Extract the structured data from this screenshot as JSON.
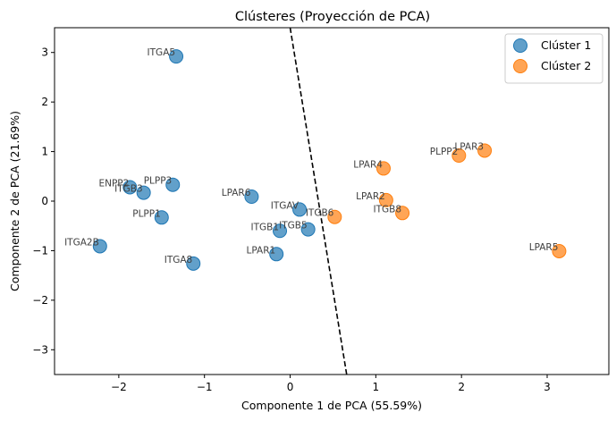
{
  "chart_data": {
    "type": "scatter",
    "title": "Clústeres (Proyección de PCA)",
    "xlabel": "Componente 1 de PCA (55.59%)",
    "ylabel": "Componente 2 de PCA (21.69%)",
    "xlim": [
      -2.75,
      3.72
    ],
    "ylim": [
      -3.5,
      3.5
    ],
    "xticks": [
      -2,
      -1,
      0,
      1,
      2,
      3
    ],
    "yticks": [
      -3,
      -2,
      -1,
      0,
      1,
      2,
      3
    ],
    "tick_labels_x": [
      "−2",
      "−1",
      "0",
      "1",
      "2",
      "3"
    ],
    "tick_labels_y": [
      "−3",
      "−2",
      "−1",
      "0",
      "1",
      "2",
      "3"
    ],
    "grid": false,
    "legend_position": "top-right",
    "boundary_line": {
      "style": "dashed",
      "color": "#000000",
      "points": [
        [
          0.0,
          3.5
        ],
        [
          0.66,
          -3.5
        ]
      ]
    },
    "series": [
      {
        "name": "Clúster 1",
        "color": "#1f77b4",
        "points": [
          {
            "label": "ITGA5",
            "x": -1.33,
            "y": 2.92
          },
          {
            "label": "ENPP2",
            "x": -1.87,
            "y": 0.28
          },
          {
            "label": "ITGB3",
            "x": -1.71,
            "y": 0.17
          },
          {
            "label": "PLPP3",
            "x": -1.37,
            "y": 0.33
          },
          {
            "label": "PLPP1",
            "x": -1.5,
            "y": -0.33
          },
          {
            "label": "ITGA2B",
            "x": -2.22,
            "y": -0.91
          },
          {
            "label": "ITGA8",
            "x": -1.13,
            "y": -1.26
          },
          {
            "label": "LPAR6",
            "x": -0.45,
            "y": 0.09
          },
          {
            "label": "ITGAV",
            "x": 0.11,
            "y": -0.17
          },
          {
            "label": "ITGB1",
            "x": -0.12,
            "y": -0.6
          },
          {
            "label": "ITGB5",
            "x": 0.21,
            "y": -0.57
          },
          {
            "label": "LPAR1",
            "x": -0.16,
            "y": -1.07
          }
        ]
      },
      {
        "name": "Clúster 2",
        "color": "#ff7f0e",
        "points": [
          {
            "label": "LPAR3",
            "x": 2.27,
            "y": 1.02
          },
          {
            "label": "PLPP2",
            "x": 1.97,
            "y": 0.92
          },
          {
            "label": "LPAR4",
            "x": 1.09,
            "y": 0.66
          },
          {
            "label": "LPAR2",
            "x": 1.12,
            "y": 0.02
          },
          {
            "label": "ITGB8",
            "x": 1.31,
            "y": -0.24
          },
          {
            "label": "ITGB6",
            "x": 0.52,
            "y": -0.32
          },
          {
            "label": "LPAR5",
            "x": 3.14,
            "y": -1.01
          }
        ]
      }
    ]
  }
}
